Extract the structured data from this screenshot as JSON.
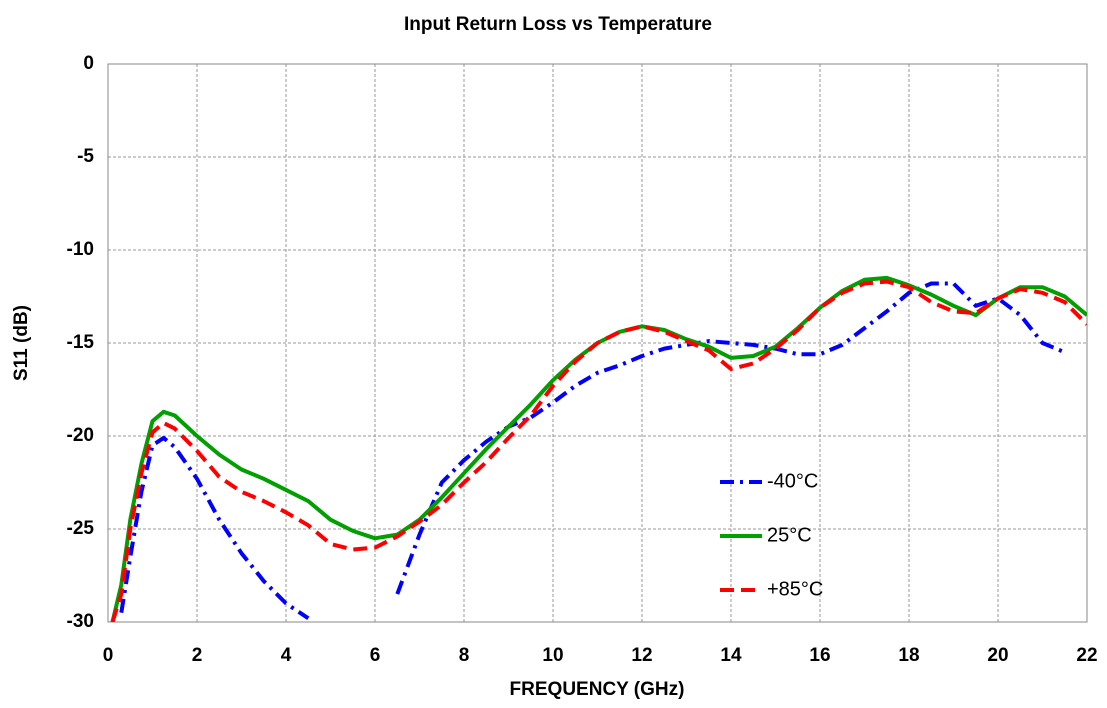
{
  "chart_data": {
    "type": "line",
    "title": "Input Return Loss vs Temperature",
    "x_label": "FREQUENCY (GHz)",
    "y_label": "S11 (dB)",
    "x": [
      0.1,
      0.3,
      0.5,
      0.75,
      1,
      1.25,
      1.5,
      2,
      2.5,
      3,
      3.5,
      4,
      4.5,
      5,
      5.5,
      6,
      6.5,
      7,
      7.5,
      8,
      8.5,
      9,
      9.5,
      10,
      10.5,
      11,
      11.5,
      12,
      12.5,
      13,
      13.5,
      14,
      14.5,
      15,
      15.5,
      16,
      16.5,
      17,
      17.5,
      18,
      18.5,
      19,
      19.5,
      20,
      20.5,
      21,
      21.5,
      22
    ],
    "series": [
      {
        "name": "-40°C",
        "color": "#0000ff",
        "linestyle": "dashdot",
        "values": [
          null,
          -29.5,
          -26.5,
          -23,
          -20.5,
          -20.1,
          -20.6,
          -22.3,
          -24.5,
          -26.3,
          -27.8,
          -29,
          -29.8,
          null,
          null,
          null,
          -28.5,
          -25.3,
          -22.5,
          -21.3,
          -20.3,
          -19.5,
          -19,
          -18.2,
          -17.3,
          -16.6,
          -16.2,
          -15.7,
          -15.3,
          -15.1,
          -14.9,
          -15,
          -15.1,
          -15.3,
          -15.6,
          -15.6,
          -15.1,
          -14.2,
          -13.3,
          -12.3,
          -11.8,
          -11.8,
          -13,
          -12.6,
          -13.5,
          -15,
          -15.5,
          null
        ]
      },
      {
        "name": "25°C",
        "color": "#00a000",
        "linestyle": "solid",
        "values": [
          -30,
          -28,
          -24.5,
          -21.5,
          -19.2,
          -18.7,
          -18.9,
          -20,
          -21,
          -21.8,
          -22.3,
          -22.9,
          -23.5,
          -24.5,
          -25.1,
          -25.5,
          -25.3,
          -24.5,
          -23.3,
          -22,
          -20.7,
          -19.5,
          -18.3,
          -17,
          -15.9,
          -15,
          -14.4,
          -14.1,
          -14.3,
          -14.8,
          -15.2,
          -15.8,
          -15.7,
          -15.2,
          -14.2,
          -13.1,
          -12.2,
          -11.6,
          -11.5,
          -11.9,
          -12.4,
          -13,
          -13.5,
          -12.6,
          -12,
          -12,
          -12.5,
          -13.5
        ]
      },
      {
        "name": "+85°C",
        "color": "#ff0000",
        "linestyle": "dashed",
        "values": [
          -30,
          -28.5,
          -25,
          -22,
          -19.8,
          -19.3,
          -19.6,
          -20.8,
          -22.2,
          -23,
          -23.5,
          -24.1,
          -24.8,
          -25.8,
          -26.1,
          -26,
          -25.4,
          -24.6,
          -23.7,
          -22.5,
          -21.4,
          -20.1,
          -18.9,
          -17.3,
          -16,
          -15,
          -14.4,
          -14.1,
          -14.4,
          -14.9,
          -15.4,
          -16.4,
          -16.1,
          -15.3,
          -14.3,
          -13.1,
          -12.3,
          -11.8,
          -11.7,
          -12,
          -12.8,
          -13.3,
          -13.4,
          -12.6,
          -12.1,
          -12.3,
          -12.8,
          -14
        ]
      }
    ],
    "xlim": [
      0,
      22
    ],
    "xticks": [
      0,
      2,
      4,
      6,
      8,
      10,
      12,
      14,
      16,
      18,
      20,
      22
    ],
    "ylim": [
      -30,
      0
    ],
    "yticks": [
      0,
      -5,
      -10,
      -15,
      -20,
      -25,
      -30
    ],
    "grid": true
  }
}
